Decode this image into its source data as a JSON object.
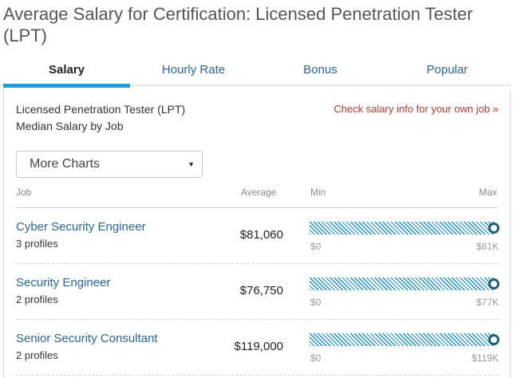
{
  "page": {
    "title": "Average Salary for Certification: Licensed Penetration Tester (LPT)"
  },
  "tabs": [
    {
      "label": "Salary",
      "active": true
    },
    {
      "label": "Hourly Rate",
      "active": false
    },
    {
      "label": "Bonus",
      "active": false
    },
    {
      "label": "Popular",
      "active": false
    }
  ],
  "card": {
    "heading": "Licensed Penetration Tester (LPT)",
    "subheading": "Median Salary by Job",
    "own_job_link": "Check salary info for your own job »",
    "select": {
      "value": "More Charts",
      "icon": "caret-down-icon"
    }
  },
  "columns": {
    "job": "Job",
    "average": "Average",
    "min": "Min",
    "max": "Max"
  },
  "colors": {
    "accent": "#1fa0d8",
    "link": "#2a6496",
    "bar": "#1d8fc4",
    "dot": "#1f5f7a",
    "cta": "#b03a2e"
  },
  "jobs": [
    {
      "name": "Cyber Security Engineer",
      "profiles": "3 profiles",
      "average": "$81,060",
      "min_label": "$0",
      "max_label": "$81K",
      "fill_fraction": 0.985
    },
    {
      "name": "Security Engineer",
      "profiles": "2 profiles",
      "average": "$76,750",
      "min_label": "$0",
      "max_label": "$77K",
      "fill_fraction": 0.985
    },
    {
      "name": "Senior Security Consultant",
      "profiles": "2 profiles",
      "average": "$119,000",
      "min_label": "$0",
      "max_label": "$119K",
      "fill_fraction": 0.985
    }
  ]
}
